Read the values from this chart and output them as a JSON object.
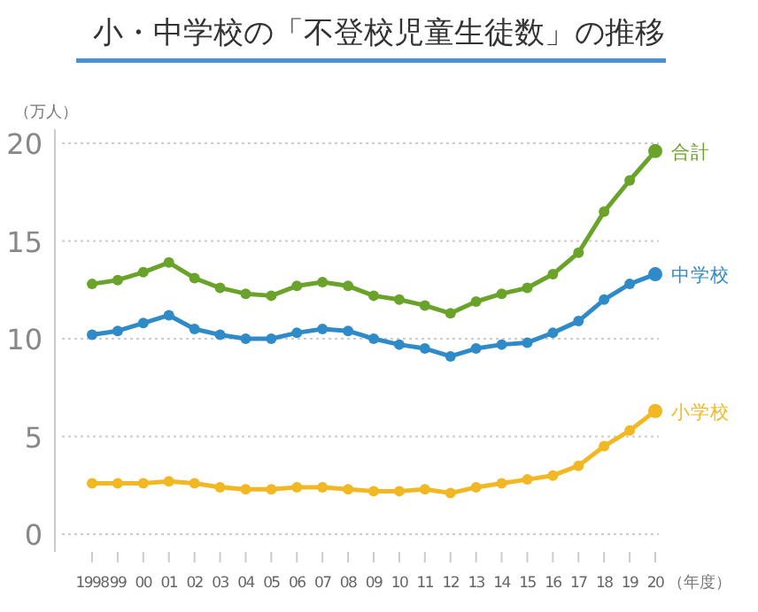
{
  "chart_data": {
    "type": "line",
    "title": "小・中学校の「不登校児童生徒数」の推移",
    "ylabel": "（万人）",
    "xlabel": "（年度）",
    "categories": [
      "1998",
      "99",
      "00",
      "01",
      "02",
      "03",
      "04",
      "05",
      "06",
      "07",
      "08",
      "09",
      "10",
      "11",
      "12",
      "13",
      "14",
      "15",
      "16",
      "17",
      "18",
      "19",
      "20"
    ],
    "series": [
      {
        "name": "合計",
        "color": "#6aa32a",
        "values": [
          12.8,
          13.0,
          13.4,
          13.9,
          13.1,
          12.6,
          12.3,
          12.2,
          12.7,
          12.9,
          12.7,
          12.2,
          12.0,
          11.7,
          11.3,
          11.9,
          12.3,
          12.6,
          13.3,
          14.4,
          16.5,
          18.1,
          19.6
        ]
      },
      {
        "name": "中学校",
        "color": "#2e8bc8",
        "values": [
          10.2,
          10.4,
          10.8,
          11.2,
          10.5,
          10.2,
          10.0,
          10.0,
          10.3,
          10.5,
          10.4,
          10.0,
          9.7,
          9.5,
          9.1,
          9.5,
          9.7,
          9.8,
          10.3,
          10.9,
          12.0,
          12.8,
          13.3
        ]
      },
      {
        "name": "小学校",
        "color": "#f2b824",
        "values": [
          2.6,
          2.6,
          2.6,
          2.7,
          2.6,
          2.4,
          2.3,
          2.3,
          2.4,
          2.4,
          2.3,
          2.2,
          2.2,
          2.3,
          2.1,
          2.4,
          2.6,
          2.8,
          3.0,
          3.5,
          4.5,
          5.3,
          6.3
        ]
      }
    ],
    "ylim": [
      0,
      20
    ],
    "yticks": [
      0,
      5,
      10,
      15,
      20
    ],
    "grid": "y",
    "marker": "circle",
    "line_style": "solid"
  }
}
